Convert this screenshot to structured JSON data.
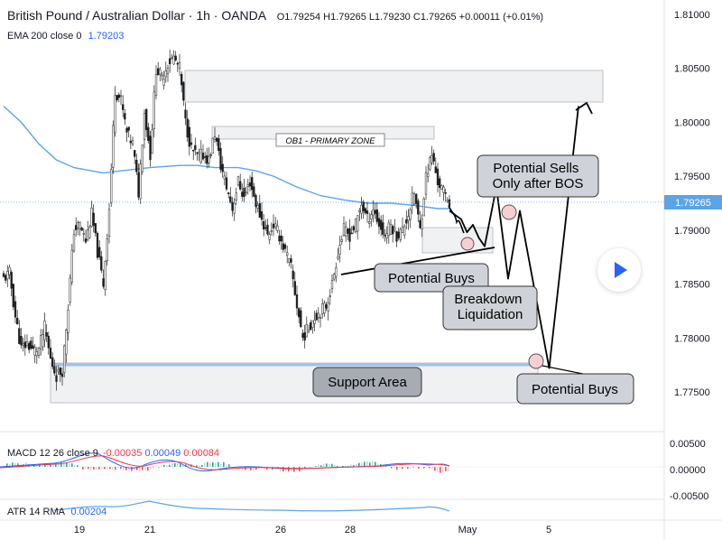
{
  "header": {
    "symbol": "British Pound / Australian Dollar · 1h · OANDA",
    "open": "O1.79254",
    "high": "H1.79265",
    "low": "L1.79230",
    "close": "C1.79265",
    "change": "+0.00011 (+0.01%)",
    "ema_label": "EMA 200 close 0",
    "ema_value": "1.79203"
  },
  "chart_data": {
    "type": "candlestick",
    "price_axis": {
      "ticks": [
        "1.81000",
        "1.80500",
        "1.80000",
        "1.79500",
        "1.79000",
        "1.78500",
        "1.78000",
        "1.77500"
      ],
      "range": [
        1.7728,
        1.8108
      ],
      "last_price_label": "1.79265",
      "last_price": 1.79265
    },
    "time_axis": {
      "labels": [
        "19",
        "21",
        "26",
        "28",
        "May",
        "5"
      ]
    },
    "ema200": {
      "color": "#5ba4e5",
      "points": [
        [
          0,
          1.8015
        ],
        [
          3,
          1.8
        ],
        [
          6,
          1.798
        ],
        [
          9,
          1.7965
        ],
        [
          12,
          1.7958
        ],
        [
          15,
          1.7955
        ],
        [
          17,
          1.7953
        ],
        [
          20,
          1.7955
        ],
        [
          25,
          1.7958
        ],
        [
          30,
          1.796
        ],
        [
          33,
          1.796
        ],
        [
          36,
          1.7958
        ],
        [
          40,
          1.7958
        ],
        [
          43,
          1.7955
        ],
        [
          46,
          1.795
        ],
        [
          50,
          1.794
        ],
        [
          54,
          1.7932
        ],
        [
          58,
          1.7928
        ],
        [
          62,
          1.7925
        ],
        [
          66,
          1.7925
        ],
        [
          70,
          1.7923
        ],
        [
          74,
          1.792
        ],
        [
          76,
          1.792
        ]
      ]
    },
    "candles_path": [
      [
        0,
        1.7855
      ],
      [
        1,
        1.786
      ],
      [
        2,
        1.782
      ],
      [
        3,
        1.779
      ],
      [
        4,
        1.7795
      ],
      [
        5,
        1.7788
      ],
      [
        6,
        1.779
      ],
      [
        7,
        1.781
      ],
      [
        8,
        1.778
      ],
      [
        9,
        1.7765
      ],
      [
        10,
        1.777
      ],
      [
        11,
        1.783
      ],
      [
        12,
        1.79
      ],
      [
        13,
        1.7905
      ],
      [
        14,
        1.789
      ],
      [
        15,
        1.7915
      ],
      [
        16,
        1.788
      ],
      [
        17,
        1.785
      ],
      [
        18,
        1.792
      ],
      [
        19,
        1.803
      ],
      [
        20,
        1.802
      ],
      [
        21,
        1.799
      ],
      [
        22,
        1.798
      ],
      [
        23,
        1.7935
      ],
      [
        24,
        1.801
      ],
      [
        25,
        1.797
      ],
      [
        26,
        1.805
      ],
      [
        27,
        1.804
      ],
      [
        28,
        1.8055
      ],
      [
        29,
        1.806
      ],
      [
        30,
        1.805
      ],
      [
        31,
        1.8
      ],
      [
        32,
        1.7975
      ],
      [
        33,
        1.7968
      ],
      [
        34,
        1.797
      ],
      [
        35,
        1.7965
      ],
      [
        36,
        1.799
      ],
      [
        37,
        1.796
      ],
      [
        38,
        1.794
      ],
      [
        39,
        1.792
      ],
      [
        40,
        1.7945
      ],
      [
        41,
        1.793
      ],
      [
        42,
        1.7945
      ],
      [
        43,
        1.7925
      ],
      [
        44,
        1.791
      ],
      [
        45,
        1.7895
      ],
      [
        46,
        1.7905
      ],
      [
        47,
        1.7895
      ],
      [
        48,
        1.788
      ],
      [
        49,
        1.7865
      ],
      [
        50,
        1.783
      ],
      [
        51,
        1.78
      ],
      [
        52,
        1.781
      ],
      [
        53,
        1.782
      ],
      [
        54,
        1.7825
      ],
      [
        55,
        1.783
      ],
      [
        56,
        1.785
      ],
      [
        57,
        1.788
      ],
      [
        58,
        1.79
      ],
      [
        59,
        1.7895
      ],
      [
        60,
        1.7905
      ],
      [
        61,
        1.7925
      ],
      [
        62,
        1.791
      ],
      [
        63,
        1.792
      ],
      [
        64,
        1.7905
      ],
      [
        65,
        1.7895
      ],
      [
        66,
        1.7905
      ],
      [
        67,
        1.7895
      ],
      [
        68,
        1.79
      ],
      [
        69,
        1.7915
      ],
      [
        70,
        1.7935
      ],
      [
        71,
        1.79
      ],
      [
        72,
        1.795
      ],
      [
        73,
        1.797
      ],
      [
        74,
        1.7945
      ],
      [
        75,
        1.7935
      ],
      [
        76,
        1.7927
      ]
    ],
    "zones": [
      {
        "name": "upper-zone",
        "top": 1.8048,
        "bottom": 1.802
      },
      {
        "name": "ob1-zone",
        "top": 1.7995,
        "bottom": 1.7988
      },
      {
        "name": "mid-zone",
        "top": 1.7908,
        "bottom": 1.7885
      },
      {
        "name": "support-zone",
        "top": 1.7775,
        "bottom": 1.7742
      }
    ],
    "annotations": {
      "ob1": "OB1 - PRIMARY ZONE",
      "potential_sells": "Potential Sells\nOnly after BOS",
      "potential_buys_1": "Potential Buys",
      "breakdown": "Breakdown\nLiquidation",
      "support": "Support Area",
      "potential_buys_2": "Potential Buys"
    },
    "projection": [
      [
        76,
        1.7918
      ],
      [
        78,
        1.791
      ],
      [
        79,
        1.7898
      ],
      [
        80,
        1.7905
      ],
      [
        81,
        1.7893
      ],
      [
        82,
        1.7885
      ],
      [
        84,
        1.794
      ],
      [
        86,
        1.7855
      ],
      [
        88,
        1.7918
      ],
      [
        93,
        1.7772
      ],
      [
        98,
        1.8015
      ]
    ]
  },
  "macd": {
    "label": "MACD 12 26 close 9",
    "v1": "-0.00035",
    "v2": "0.00049",
    "v3": "0.00084",
    "ticks": [
      "0.00500",
      "0.00000",
      "-0.00500"
    ]
  },
  "atr": {
    "label": "ATR 14 RMA",
    "value": "0.00204"
  }
}
